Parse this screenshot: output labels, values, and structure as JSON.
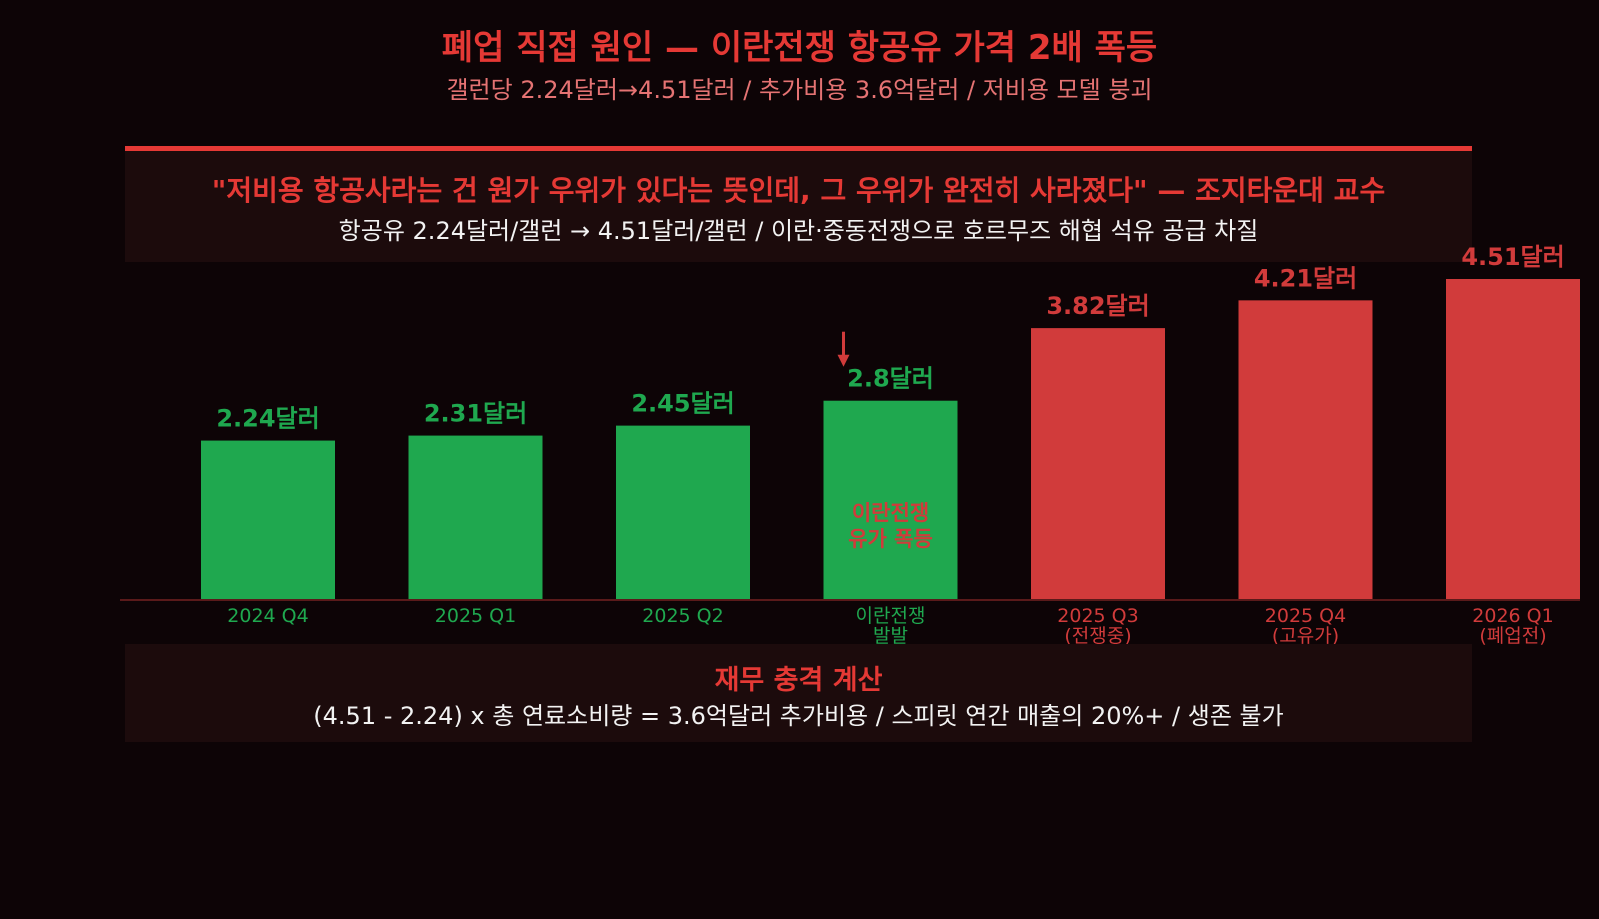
{
  "header": {
    "title": "폐업 직접 원인 — 이란전쟁 항공유 가격 2배 폭등",
    "subtitle": "갤런당 2.24달러→4.51달러 / 추가비용 3.6억달러 / 저비용 모델 붕괴"
  },
  "quote": {
    "text": "\"저비용 항공사라는 건 원가 우위가 있다는 뜻인데, 그 우위가 완전히 사라졌다\" — 조지타운대 교수",
    "detail": "항공유 2.24달러/갤런 → 4.51달러/갤런 / 이란·중동전쟁으로 호르무즈 해협 석유 공급 차질"
  },
  "chart_data": {
    "type": "bar",
    "categories": [
      [
        "2024 Q4"
      ],
      [
        "2025 Q1"
      ],
      [
        "2025 Q2"
      ],
      [
        "이란전쟁",
        "발발"
      ],
      [
        "2025 Q3",
        "(전쟁중)"
      ],
      [
        "2025 Q4",
        "(고유가)"
      ],
      [
        "2026 Q1",
        "(폐업전)"
      ]
    ],
    "values": [
      2.24,
      2.31,
      2.45,
      2.8,
      3.82,
      4.21,
      4.51
    ],
    "value_labels": [
      "2.24달러",
      "2.31달러",
      "2.45달러",
      "2.8달러",
      "3.82달러",
      "4.21달러",
      "4.51달러"
    ],
    "ylim": [
      0,
      4.51
    ],
    "grid": false,
    "annotation": {
      "category_index": 3,
      "lines": [
        "이란전쟁",
        "유가 폭등"
      ]
    },
    "colors": {
      "pre_war": "#1fa84f",
      "war": "#d13b3b",
      "annotation": "#d13b3b",
      "axis": "#5a1a1a"
    }
  },
  "calc": {
    "title": "재무 충격 계산",
    "text": "(4.51 - 2.24) x 총 연료소비량 = 3.6억달러 추가비용 / 스피릿 연간 매출의 20%+ / 생존 불가"
  }
}
